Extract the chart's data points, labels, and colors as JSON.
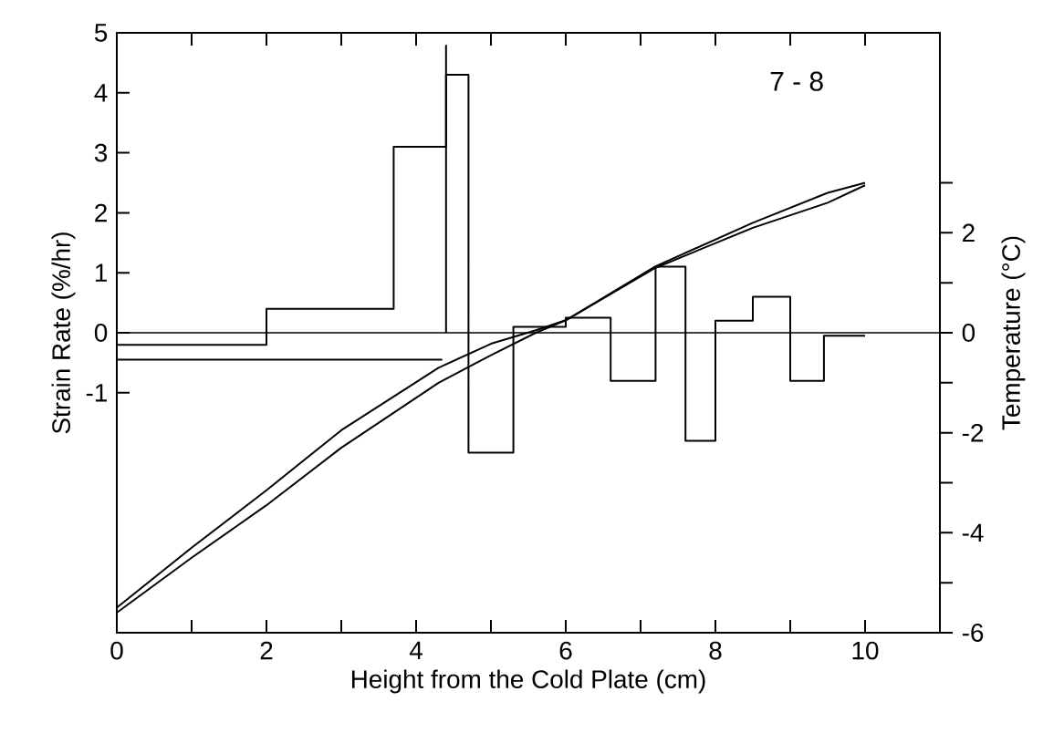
{
  "chart_data": {
    "type": "step",
    "xlabel": "Height from the Cold Plate (cm)",
    "ylabel": "Strain Rate (%/hr)",
    "y2label": "Temperature (°C)",
    "annotations": [
      "7 - 8"
    ],
    "xlim": [
      0,
      11
    ],
    "xticks": [
      0,
      {
        "value": 1,
        "label": null
      },
      2,
      {
        "value": 3,
        "label": null
      },
      4,
      {
        "value": 5,
        "label": null
      },
      6,
      {
        "value": 7,
        "label": null
      },
      8,
      {
        "value": 9,
        "label": null
      },
      10
    ],
    "ylim": [
      -5,
      5
    ],
    "yticks": [
      -1,
      0,
      1,
      2,
      3,
      4,
      5
    ],
    "y2lim": [
      -6,
      6
    ],
    "y2ticks": [
      -6,
      {
        "value": -5,
        "label": null
      },
      -4,
      {
        "value": -3,
        "label": null
      },
      -2,
      {
        "value": -1,
        "label": null
      },
      0,
      {
        "value": 1,
        "label": null
      },
      2,
      {
        "value": 3,
        "label": null
      }
    ],
    "marker": "none",
    "line_style": "solid",
    "ref_lines": [
      {
        "axis": "y",
        "value": 0,
        "color": "#000000"
      }
    ],
    "series": [
      {
        "color": "#000000",
        "x": [
          0,
          2,
          3.7,
          4.4,
          4.7,
          5.3,
          6.0,
          6.6,
          7.2,
          7.6,
          8.0,
          8.5,
          9.0,
          9.45,
          10
        ],
        "values": [
          -0.2,
          0.4,
          3.1,
          4.3,
          -2.0,
          0.1,
          0.25,
          -0.8,
          1.1,
          -1.8,
          0.2,
          0.6,
          -0.8,
          -0.05,
          -0.05
        ]
      },
      {
        "type": "line",
        "color": "#000000",
        "x": [
          0,
          4.35
        ],
        "values": [
          -0.45,
          -0.45
        ]
      },
      {
        "type": "line",
        "color": "#000000",
        "x": [
          4.4,
          4.4
        ],
        "values": [
          0,
          4.8
        ]
      },
      {
        "type": "line",
        "axis": "y2",
        "color": "#000000",
        "x": [
          0,
          1,
          2,
          3,
          4.3,
          5,
          5.6,
          6,
          7.2,
          8.5,
          9.5,
          10
        ],
        "values": [
          -5.5,
          -4.3,
          -3.15,
          -1.95,
          -0.7,
          -0.22,
          0.05,
          0.25,
          1.33,
          2.2,
          2.8,
          3.0
        ]
      },
      {
        "type": "line",
        "axis": "y2",
        "color": "#000000",
        "x": [
          0,
          1,
          2,
          3,
          4.3,
          5,
          5.6,
          6,
          7.2,
          8.5,
          9.5,
          10
        ],
        "values": [
          -5.6,
          -4.5,
          -3.45,
          -2.3,
          -1.0,
          -0.45,
          0,
          0.25,
          1.3,
          2.1,
          2.6,
          2.95
        ]
      }
    ]
  }
}
